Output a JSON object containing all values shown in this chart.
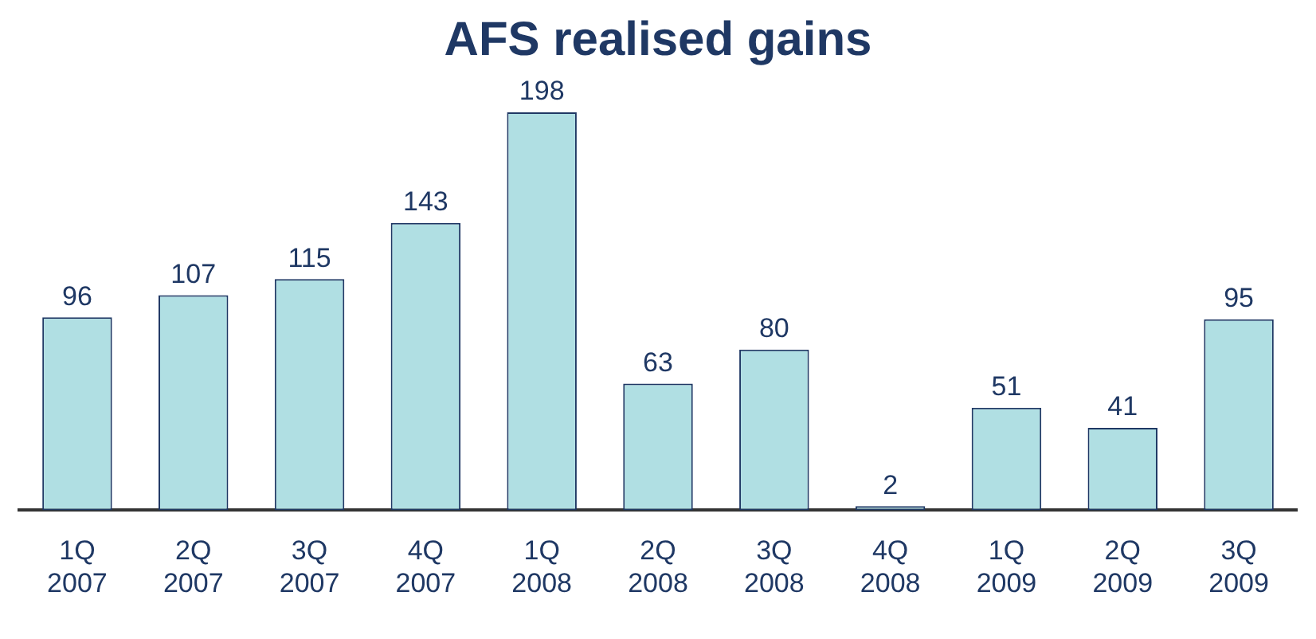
{
  "chart_data": {
    "type": "bar",
    "title": "AFS realised gains",
    "categories": [
      "1Q 2007",
      "2Q 2007",
      "3Q 2007",
      "4Q 2007",
      "1Q 2008",
      "2Q 2008",
      "3Q 2008",
      "4Q 2008",
      "1Q 2009",
      "2Q 2009",
      "3Q 2009"
    ],
    "values": [
      96,
      107,
      115,
      143,
      198,
      63,
      80,
      2,
      51,
      41,
      95
    ],
    "color": "#b0dfe3",
    "data_labels": true,
    "grid": false,
    "legend": false,
    "tick_labels": "x"
  }
}
